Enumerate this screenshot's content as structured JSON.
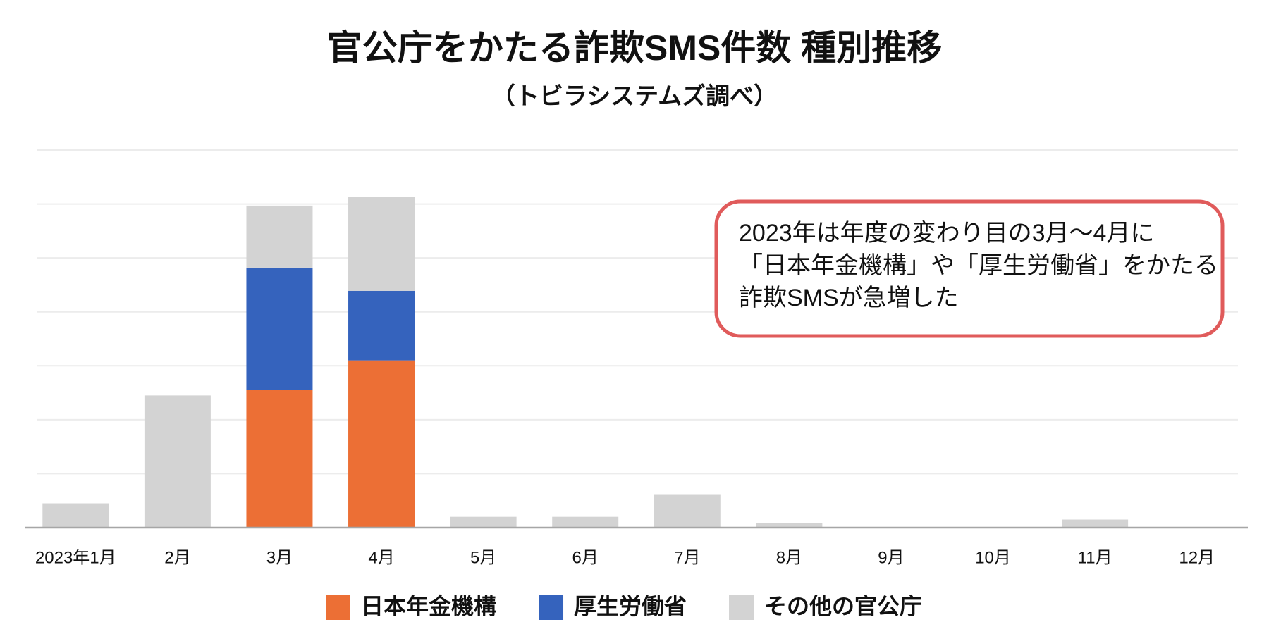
{
  "chart_data": {
    "type": "bar",
    "stacked": true,
    "title": "官公庁をかたる詐欺SMS件数 種別推移",
    "subtitle": "（トビラシステムズ調べ）",
    "categories": [
      "2023年1月",
      "2月",
      "3月",
      "4月",
      "5月",
      "6月",
      "7月",
      "8月",
      "9月",
      "10月",
      "11月",
      "12月"
    ],
    "series": [
      {
        "name": "日本年金機構",
        "color": "#ec6f35",
        "values": [
          0,
          0,
          2.55,
          3.1,
          0,
          0,
          0,
          0,
          0,
          0,
          0,
          0
        ]
      },
      {
        "name": "厚生労働省",
        "color": "#3563bd",
        "values": [
          0,
          0,
          2.27,
          1.29,
          0,
          0,
          0,
          0,
          0,
          0,
          0,
          0
        ]
      },
      {
        "name": "その他の官公庁",
        "color": "#d3d3d3",
        "values": [
          0.45,
          2.45,
          1.15,
          1.74,
          0.2,
          0.2,
          0.62,
          0.08,
          0,
          0,
          0.15,
          0
        ]
      }
    ],
    "ylim": [
      0,
      7
    ],
    "yticks": [
      0,
      1,
      2,
      3,
      4,
      5,
      6,
      7
    ],
    "grid": true,
    "annotation": [
      "2023年は年度の変わり目の3月〜4月に",
      "「日本年金機構」や「厚生労働省」をかたる",
      "詐欺SMSが急増した"
    ]
  }
}
